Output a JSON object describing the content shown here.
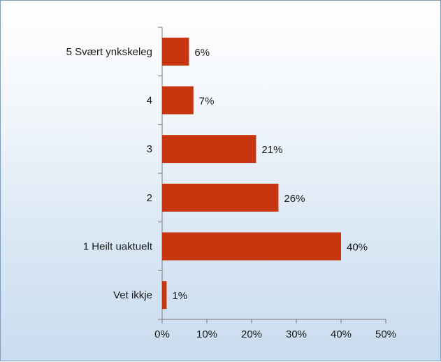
{
  "chart_data": {
    "type": "bar",
    "orientation": "horizontal",
    "categories": [
      "5 Svært ynkskeleg",
      "4",
      "3",
      "2",
      "1 Heilt uaktuelt",
      "Vet ikkje"
    ],
    "values": [
      6,
      7,
      21,
      26,
      40,
      1
    ],
    "value_labels": [
      "6%",
      "7%",
      "21%",
      "26%",
      "40%",
      "1%"
    ],
    "x_ticks": [
      "0%",
      "10%",
      "20%",
      "30%",
      "40%",
      "50%"
    ],
    "xlim": [
      0,
      50
    ],
    "grid": false,
    "bar_color": "#c8360f",
    "background_gradient": [
      "#ffffff",
      "#c9dcef"
    ]
  }
}
